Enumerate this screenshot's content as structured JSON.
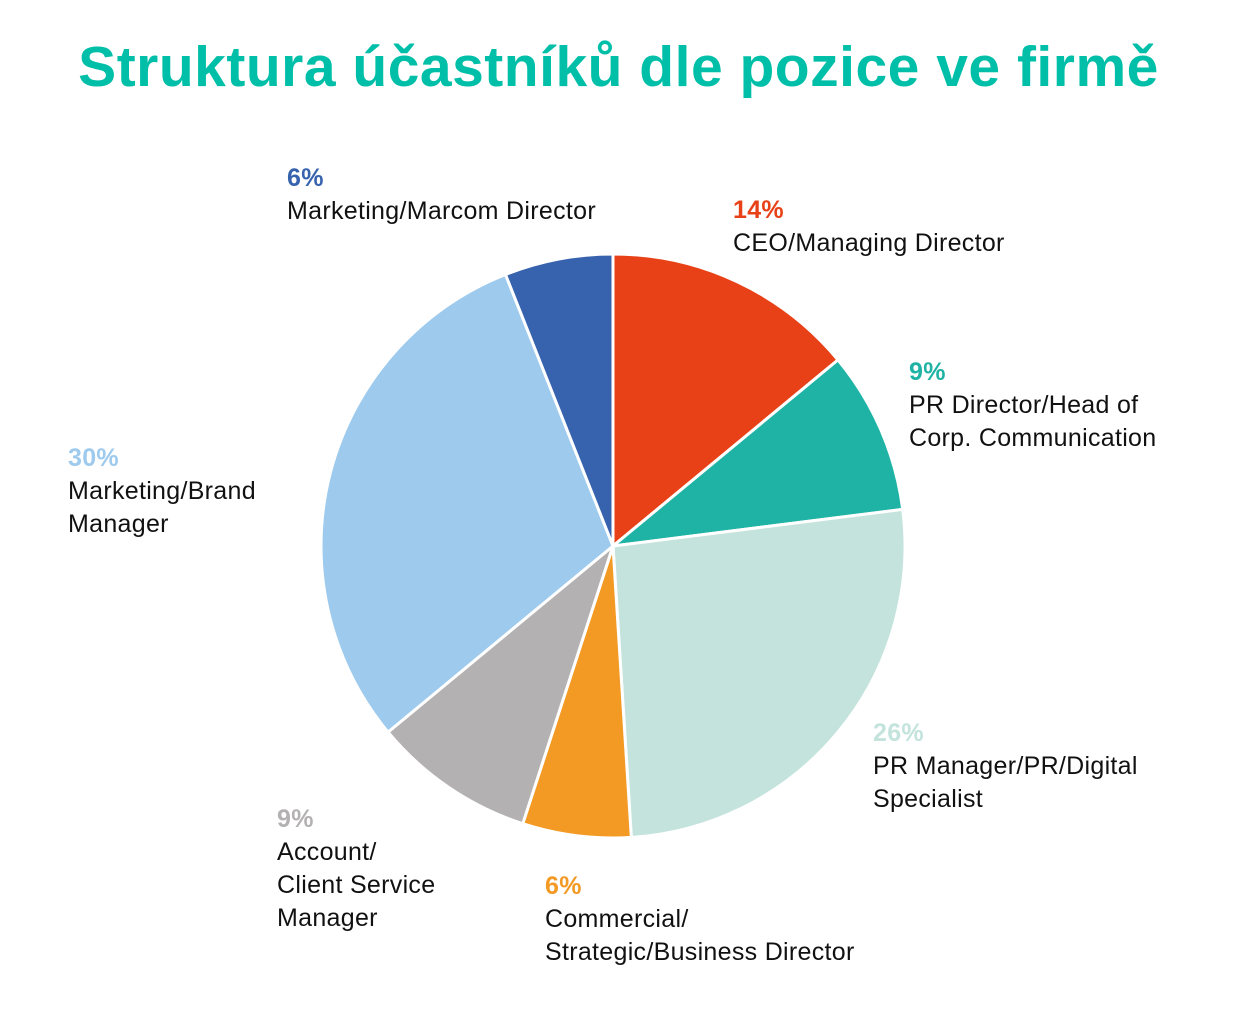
{
  "chart_data": {
    "type": "pie",
    "title": "Struktura účastníků dle pozice ve firmě",
    "start": "top",
    "direction": "clockwise",
    "slices": [
      {
        "label": "CEO/Managing Director",
        "value": 14,
        "pct_label": "14%",
        "color": "#E84117"
      },
      {
        "label": "PR Director/Head of\nCorp. Communication",
        "value": 9,
        "pct_label": "9%",
        "color": "#1FB3A5"
      },
      {
        "label": "PR Manager/PR/Digital\nSpecialist",
        "value": 26,
        "pct_label": "26%",
        "color": "#C3E3DC"
      },
      {
        "label": "Commercial/\nStrategic/Business Director",
        "value": 6,
        "pct_label": "6%",
        "color": "#F39A25"
      },
      {
        "label": "Account/\nClient Service\nManager",
        "value": 9,
        "pct_label": "9%",
        "color": "#B3B1B1"
      },
      {
        "label": "Marketing/Brand\nManager",
        "value": 30,
        "pct_label": "30%",
        "color": "#9DCAED"
      },
      {
        "label": "Marketing/Marcom Director",
        "value": 6,
        "pct_label": "6%",
        "color": "#3763AE"
      }
    ]
  }
}
